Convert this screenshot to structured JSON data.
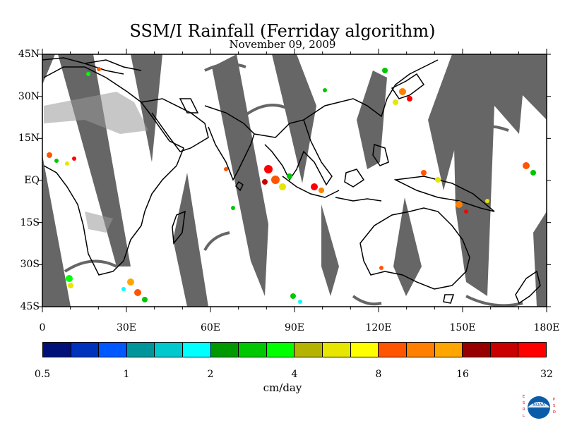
{
  "title": "SSM/I Rainfall (Ferriday algorithm)",
  "subtitle": "November 09, 2009",
  "lat_labels": [
    "45N",
    "30N",
    "15N",
    "EQ",
    "15S",
    "30S",
    "45S"
  ],
  "lon_labels": [
    "0",
    "30E",
    "60E",
    "90E",
    "120E",
    "150E",
    "180E"
  ],
  "colorbar": {
    "colors": [
      "#00127a",
      "#0033bb",
      "#0058ff",
      "#00959a",
      "#00c8cc",
      "#00ffff",
      "#009900",
      "#00c800",
      "#00ff00",
      "#b4b400",
      "#e6e600",
      "#ffff00",
      "#ff5500",
      "#ff7f00",
      "#ffa500",
      "#960000",
      "#c80000",
      "#ff0000"
    ],
    "tick_labels": [
      "0.5",
      "1",
      "2",
      "4",
      "8",
      "16",
      "32"
    ],
    "units": "cm/day"
  },
  "colors": {
    "missing_swath": "#666666",
    "coastline": "#000000"
  },
  "logo": {
    "left_text": "E S R L",
    "right_text": "P S D",
    "emblem": "NOAA"
  }
}
